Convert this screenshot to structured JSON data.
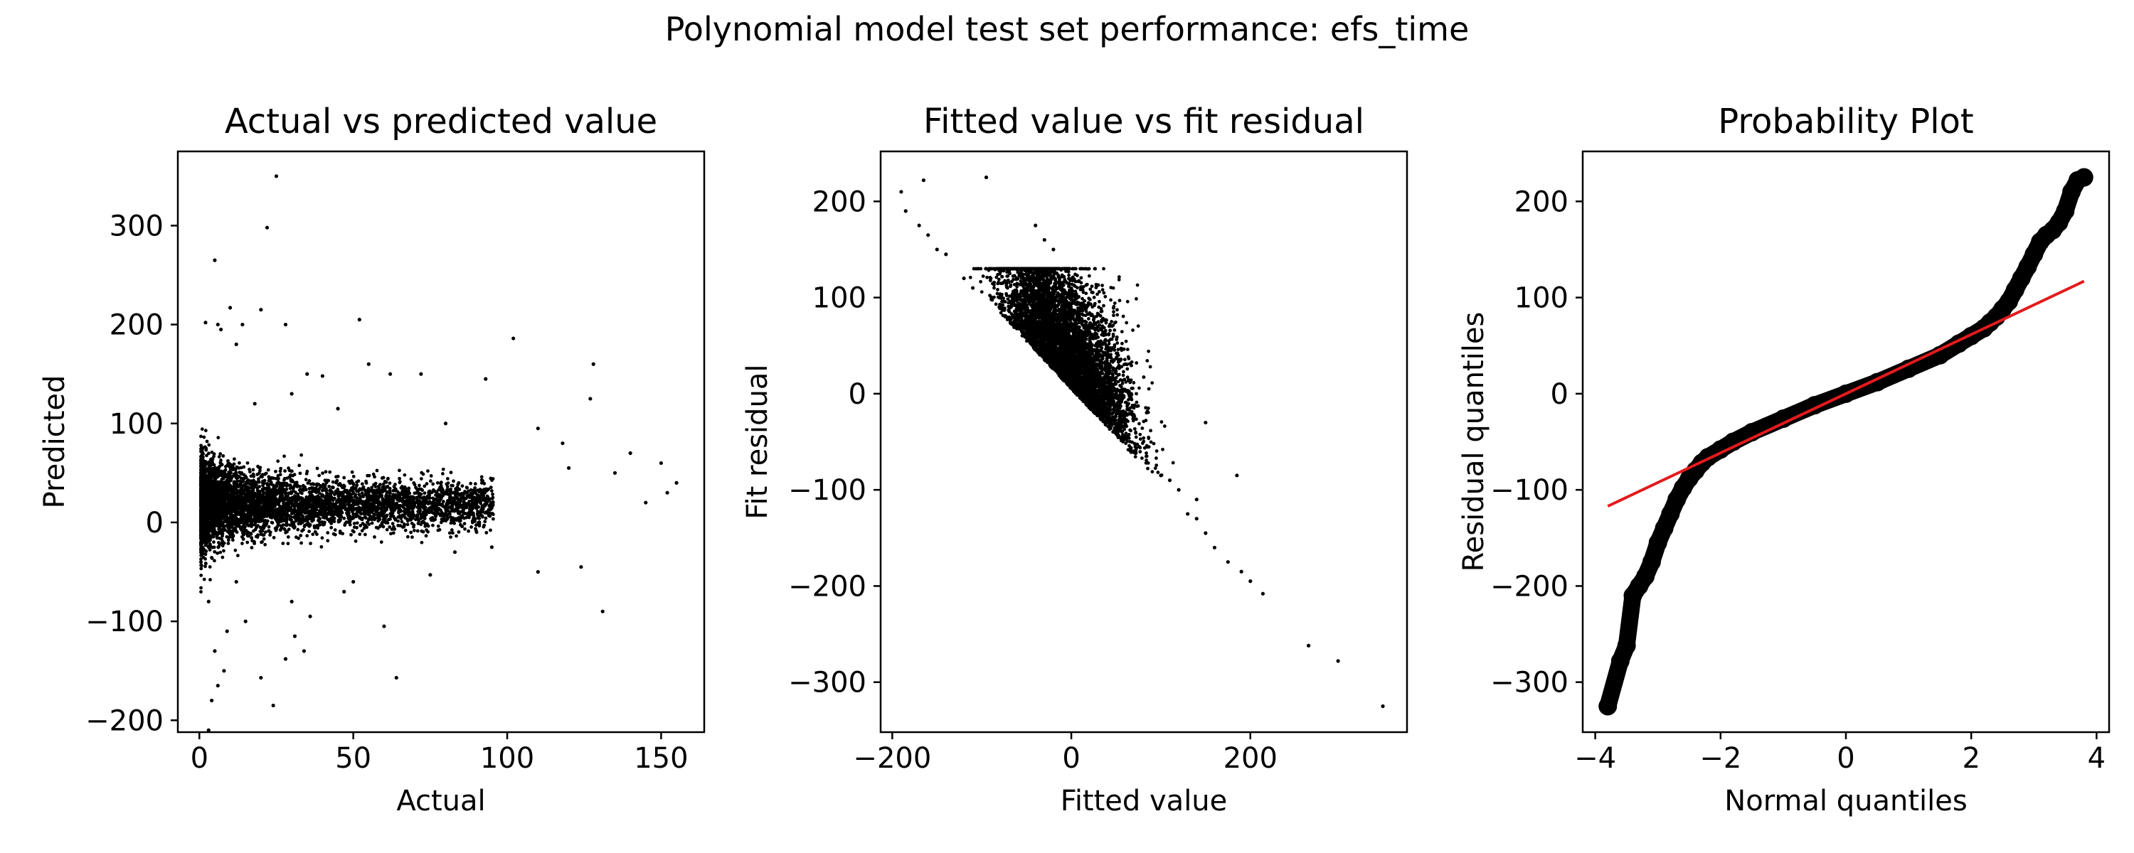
{
  "figure": {
    "title": "Polynomial model test set performance: efs_time"
  },
  "chart_data": [
    {
      "type": "scatter",
      "title": "Actual vs predicted value",
      "xlabel": "Actual",
      "ylabel": "Predicted",
      "xlim": [
        -7,
        164
      ],
      "ylim": [
        -212,
        375
      ],
      "xticks": [
        0,
        50,
        100,
        150
      ],
      "yticks": [
        -200,
        -100,
        0,
        100,
        200,
        300
      ],
      "marker_color": "#000000",
      "points": [
        [
          25,
          350
        ],
        [
          5,
          265
        ],
        [
          22,
          298
        ],
        [
          10,
          217
        ],
        [
          2,
          202
        ],
        [
          6,
          200
        ],
        [
          14,
          200
        ],
        [
          28,
          200
        ],
        [
          52,
          205
        ],
        [
          102,
          186
        ],
        [
          128,
          160
        ],
        [
          20,
          215
        ],
        [
          7,
          195
        ],
        [
          12,
          180
        ],
        [
          35,
          150
        ],
        [
          40,
          148
        ],
        [
          62,
          150
        ],
        [
          72,
          150
        ],
        [
          93,
          145
        ],
        [
          127,
          125
        ],
        [
          55,
          160
        ],
        [
          18,
          120
        ],
        [
          30,
          130
        ],
        [
          45,
          115
        ],
        [
          80,
          100
        ],
        [
          110,
          95
        ],
        [
          140,
          70
        ],
        [
          150,
          60
        ],
        [
          152,
          30
        ],
        [
          155,
          40
        ],
        [
          145,
          20
        ],
        [
          135,
          50
        ],
        [
          120,
          55
        ],
        [
          118,
          80
        ],
        [
          131,
          -90
        ],
        [
          4,
          -180
        ],
        [
          6,
          -165
        ],
        [
          8,
          -150
        ],
        [
          20,
          -157
        ],
        [
          24,
          -185
        ],
        [
          28,
          -138
        ],
        [
          31,
          -115
        ],
        [
          34,
          -130
        ],
        [
          64,
          -157
        ],
        [
          60,
          -105
        ],
        [
          36,
          -95
        ],
        [
          47,
          -70
        ],
        [
          124,
          -45
        ],
        [
          110,
          -50
        ],
        [
          75,
          -53
        ],
        [
          83,
          -30
        ],
        [
          95,
          -25
        ],
        [
          5,
          -130
        ],
        [
          3,
          -80
        ],
        [
          9,
          -110
        ],
        [
          12,
          -60
        ],
        [
          15,
          -100
        ],
        [
          30,
          -80
        ],
        [
          50,
          -60
        ],
        [
          3,
          -210
        ]
      ],
      "cloud": {
        "x_range": [
          0,
          100
        ],
        "y_center": 22,
        "y_spread": 30
      }
    },
    {
      "type": "scatter",
      "title": "Fitted value vs fit residual",
      "xlabel": "Fitted value",
      "ylabel": "Fit residual",
      "xlim": [
        -213,
        375
      ],
      "ylim": [
        -352,
        252
      ],
      "xticks": [
        -200,
        0,
        200
      ],
      "yticks": [
        -300,
        -200,
        -100,
        0,
        100,
        200
      ],
      "marker_color": "#000000",
      "points": [
        [
          -190,
          210
        ],
        [
          -165,
          222
        ],
        [
          -95,
          225
        ],
        [
          -185,
          190
        ],
        [
          -170,
          175
        ],
        [
          -160,
          165
        ],
        [
          -150,
          150
        ],
        [
          -140,
          145
        ],
        [
          -120,
          120
        ],
        [
          -110,
          110
        ],
        [
          -90,
          120
        ],
        [
          -60,
          100
        ],
        [
          -40,
          175
        ],
        [
          -30,
          160
        ],
        [
          -20,
          150
        ],
        [
          265,
          -262
        ],
        [
          298,
          -278
        ],
        [
          348,
          -325
        ],
        [
          214,
          -208
        ],
        [
          200,
          -195
        ],
        [
          190,
          -185
        ],
        [
          175,
          -175
        ],
        [
          160,
          -160
        ],
        [
          150,
          -145
        ],
        [
          140,
          -130
        ],
        [
          130,
          -125
        ],
        [
          150,
          -30
        ],
        [
          140,
          -110
        ],
        [
          185,
          -85
        ],
        [
          120,
          -100
        ],
        [
          110,
          -90
        ],
        [
          100,
          -85
        ]
      ],
      "cloud": {
        "x_range": [
          -60,
          110
        ],
        "y_center": 20
      }
    },
    {
      "type": "scatter",
      "title": "Probability Plot",
      "xlabel": "Normal quantiles",
      "ylabel": "Residual quantiles",
      "xlim": [
        -4.2,
        4.2
      ],
      "ylim": [
        -352,
        252
      ],
      "xticks": [
        -4,
        -2,
        0,
        2,
        4
      ],
      "yticks": [
        -300,
        -200,
        -100,
        0,
        100,
        200
      ],
      "marker_color": "#000000",
      "line_color": "#e31a1c",
      "fit_line": {
        "x": [
          -3.8,
          3.8
        ],
        "y": [
          -117,
          117
        ]
      },
      "quantile_points": [
        [
          -3.8,
          -325
        ],
        [
          -3.6,
          -278
        ],
        [
          -3.5,
          -262
        ],
        [
          -3.4,
          -210
        ],
        [
          -3.3,
          -200
        ],
        [
          -3.2,
          -190
        ],
        [
          -3.1,
          -175
        ],
        [
          -3.0,
          -155
        ],
        [
          -2.9,
          -140
        ],
        [
          -2.8,
          -125
        ],
        [
          -2.7,
          -110
        ],
        [
          -2.6,
          -98
        ],
        [
          -2.5,
          -88
        ],
        [
          -2.4,
          -80
        ],
        [
          -2.3,
          -72
        ],
        [
          -2.2,
          -66
        ],
        [
          -2.0,
          -58
        ],
        [
          -1.8,
          -50
        ],
        [
          -1.5,
          -40
        ],
        [
          -1.0,
          -26
        ],
        [
          -0.5,
          -12
        ],
        [
          0,
          0
        ],
        [
          0.5,
          12
        ],
        [
          1.0,
          26
        ],
        [
          1.5,
          40
        ],
        [
          1.8,
          52
        ],
        [
          2.0,
          60
        ],
        [
          2.2,
          68
        ],
        [
          2.3,
          74
        ],
        [
          2.4,
          80
        ],
        [
          2.5,
          88
        ],
        [
          2.6,
          96
        ],
        [
          2.7,
          108
        ],
        [
          2.8,
          120
        ],
        [
          2.9,
          132
        ],
        [
          3.0,
          145
        ],
        [
          3.1,
          158
        ],
        [
          3.2,
          165
        ],
        [
          3.3,
          170
        ],
        [
          3.4,
          178
        ],
        [
          3.5,
          190
        ],
        [
          3.6,
          210
        ],
        [
          3.7,
          222
        ],
        [
          3.8,
          225
        ]
      ]
    }
  ]
}
